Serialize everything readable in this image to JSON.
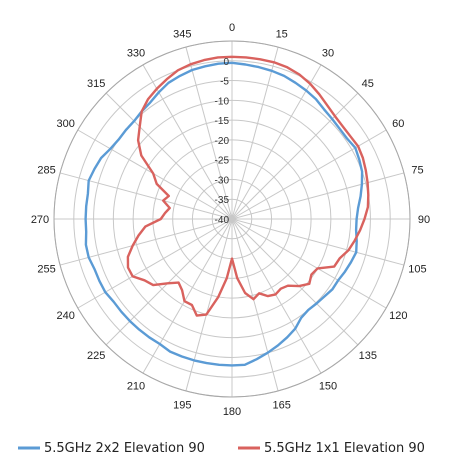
{
  "chart_data": {
    "type": "line",
    "subtype": "polar",
    "title": "",
    "angle_ticks": [
      "0",
      "15",
      "30",
      "45",
      "60",
      "75",
      "90",
      "105",
      "120",
      "135",
      "150",
      "165",
      "180",
      "195",
      "210",
      "225",
      "240",
      "255",
      "270",
      "285",
      "300",
      "315",
      "330",
      "345"
    ],
    "radial_ticks": [
      "0",
      "-5",
      "-10",
      "-15",
      "-20",
      "-25",
      "-30",
      "-35",
      "-40"
    ],
    "radial_range": [
      -40,
      5
    ],
    "grid": true,
    "legend_position": "bottom",
    "series": [
      {
        "name": "5.5GHz 2x2 Elevation 90",
        "color": "#5b9bd5",
        "points": [
          [
            0,
            -0.5
          ],
          [
            5,
            -0.8
          ],
          [
            10,
            -1
          ],
          [
            15,
            -1.2
          ],
          [
            20,
            -1.5
          ],
          [
            25,
            -2
          ],
          [
            30,
            -2.5
          ],
          [
            35,
            -3
          ],
          [
            40,
            -3.8
          ],
          [
            45,
            -4.2
          ],
          [
            50,
            -4.5
          ],
          [
            55,
            -4.5
          ],
          [
            60,
            -4
          ],
          [
            65,
            -4.5
          ],
          [
            70,
            -5
          ],
          [
            75,
            -6
          ],
          [
            80,
            -7
          ],
          [
            85,
            -8
          ],
          [
            90,
            -8.5
          ],
          [
            95,
            -8.5
          ],
          [
            100,
            -8
          ],
          [
            105,
            -7.5
          ],
          [
            110,
            -8
          ],
          [
            115,
            -8.5
          ],
          [
            120,
            -9
          ],
          [
            125,
            -9
          ],
          [
            130,
            -9.5
          ],
          [
            135,
            -9.8
          ],
          [
            140,
            -10
          ],
          [
            145,
            -9.5
          ],
          [
            150,
            -8
          ],
          [
            155,
            -7
          ],
          [
            160,
            -6
          ],
          [
            165,
            -5
          ],
          [
            170,
            -4
          ],
          [
            175,
            -3
          ],
          [
            180,
            -3
          ],
          [
            185,
            -3
          ],
          [
            190,
            -3
          ],
          [
            195,
            -3
          ],
          [
            200,
            -3
          ],
          [
            205,
            -3
          ],
          [
            210,
            -3.5
          ],
          [
            215,
            -3.5
          ],
          [
            220,
            -3.5
          ],
          [
            225,
            -3.5
          ],
          [
            230,
            -3.5
          ],
          [
            235,
            -3.5
          ],
          [
            240,
            -3
          ],
          [
            245,
            -3
          ],
          [
            250,
            -3
          ],
          [
            255,
            -2.5
          ],
          [
            260,
            -2.5
          ],
          [
            265,
            -3
          ],
          [
            270,
            -3
          ],
          [
            275,
            -3
          ],
          [
            280,
            -3
          ],
          [
            285,
            -2.5
          ],
          [
            290,
            -3
          ],
          [
            295,
            -3.5
          ],
          [
            300,
            -4.5
          ],
          [
            305,
            -5
          ],
          [
            310,
            -5
          ],
          [
            315,
            -5
          ],
          [
            320,
            -4.5
          ],
          [
            325,
            -4
          ],
          [
            330,
            -3
          ],
          [
            335,
            -2
          ],
          [
            340,
            -1.5
          ],
          [
            345,
            -1
          ],
          [
            350,
            -0.8
          ],
          [
            355,
            -0.6
          ],
          [
            360,
            -0.5
          ]
        ]
      },
      {
        "name": "5.5GHz 1x1 Elevation 90",
        "color": "#d9625e",
        "points": [
          [
            0,
            1
          ],
          [
            5,
            1
          ],
          [
            10,
            1
          ],
          [
            15,
            1
          ],
          [
            20,
            0.8
          ],
          [
            25,
            0.3
          ],
          [
            30,
            -0.5
          ],
          [
            35,
            -1.5
          ],
          [
            40,
            -2.5
          ],
          [
            45,
            -3.2
          ],
          [
            50,
            -3.5
          ],
          [
            55,
            -3.5
          ],
          [
            60,
            -3.2
          ],
          [
            65,
            -3.5
          ],
          [
            70,
            -4
          ],
          [
            75,
            -4.5
          ],
          [
            80,
            -5
          ],
          [
            85,
            -5.5
          ],
          [
            90,
            -6.5
          ],
          [
            95,
            -7.5
          ],
          [
            100,
            -8.5
          ],
          [
            105,
            -9.5
          ],
          [
            110,
            -11
          ],
          [
            115,
            -11.5
          ],
          [
            120,
            -15
          ],
          [
            125,
            -15.5
          ],
          [
            130,
            -14.5
          ],
          [
            135,
            -16
          ],
          [
            140,
            -18
          ],
          [
            145,
            -18.5
          ],
          [
            150,
            -18
          ],
          [
            155,
            -18.5
          ],
          [
            160,
            -20
          ],
          [
            165,
            -19
          ],
          [
            170,
            -21
          ],
          [
            175,
            -25
          ],
          [
            180,
            -30
          ],
          [
            185,
            -25
          ],
          [
            190,
            -20
          ],
          [
            195,
            -15
          ],
          [
            200,
            -14
          ],
          [
            205,
            -16
          ],
          [
            210,
            -16
          ],
          [
            215,
            -18
          ],
          [
            220,
            -19
          ],
          [
            225,
            -17
          ],
          [
            230,
            -14
          ],
          [
            235,
            -13
          ],
          [
            240,
            -11
          ],
          [
            245,
            -11
          ],
          [
            250,
            -12
          ],
          [
            255,
            -14
          ],
          [
            260,
            -16
          ],
          [
            265,
            -18
          ],
          [
            270,
            -22
          ],
          [
            275,
            -23
          ],
          [
            280,
            -24
          ],
          [
            285,
            -22
          ],
          [
            290,
            -23
          ],
          [
            295,
            -19
          ],
          [
            300,
            -17
          ],
          [
            305,
            -12
          ],
          [
            310,
            -9
          ],
          [
            315,
            -7
          ],
          [
            320,
            -4.5
          ],
          [
            325,
            -3
          ],
          [
            330,
            -2
          ],
          [
            335,
            -1
          ],
          [
            340,
            0
          ],
          [
            345,
            0.5
          ],
          [
            350,
            0.8
          ],
          [
            355,
            1
          ],
          [
            360,
            1
          ]
        ]
      }
    ]
  }
}
